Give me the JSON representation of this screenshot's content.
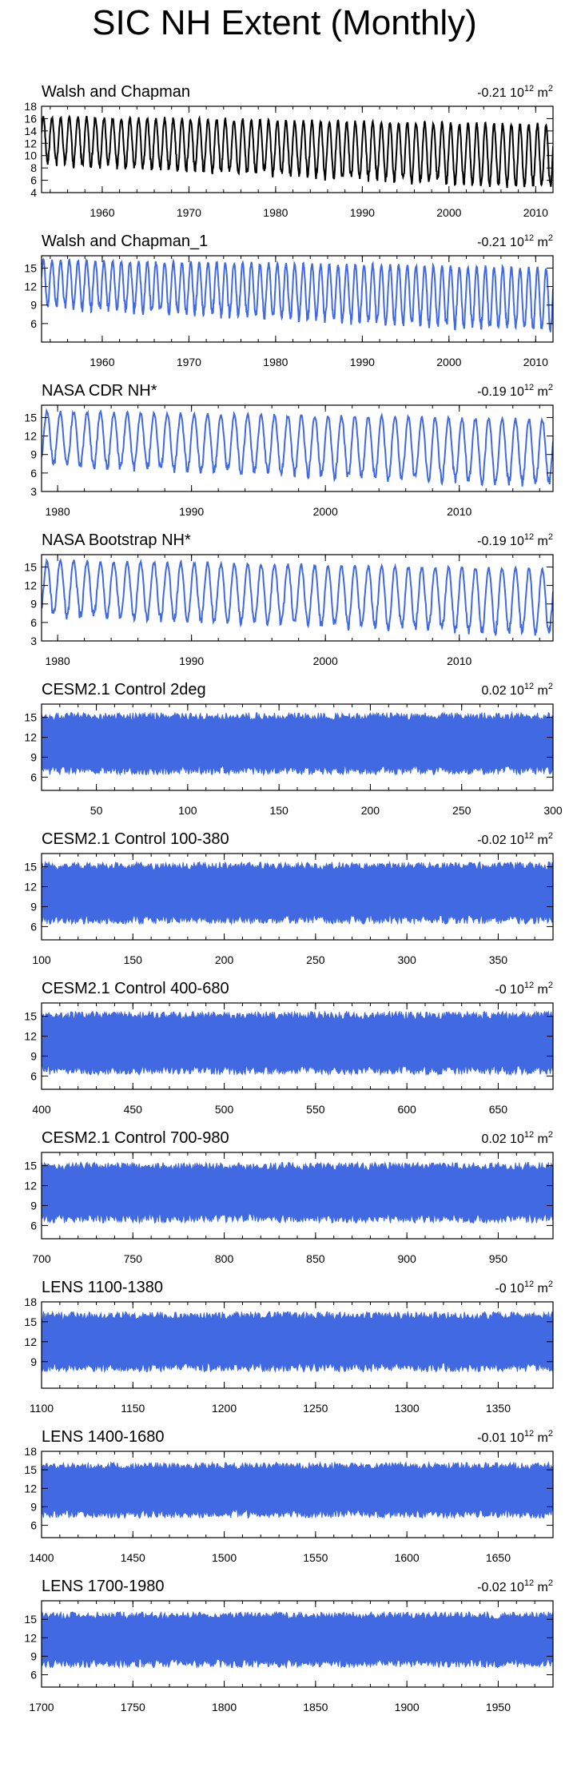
{
  "title": "SIC NH Extent (Monthly)",
  "colors": {
    "obs_black": "#000000",
    "blue": "#4169e1",
    "frame": "#000000"
  },
  "trend_unit_base": "10",
  "trend_unit_exp": "12",
  "trend_unit_tail": "m",
  "trend_unit_tail_exp": "2",
  "chart_data": [
    {
      "type": "line",
      "title": "Walsh and Chapman",
      "trend": "-0.21",
      "style": "line-black",
      "xlim": [
        1953,
        2012
      ],
      "ylim": [
        4,
        18
      ],
      "xticks": [
        1960,
        1970,
        1980,
        1990,
        2000,
        2010
      ],
      "yticks": [
        4,
        6,
        8,
        10,
        12,
        14,
        16,
        18
      ],
      "cycle": {
        "max_start": 16.3,
        "max_end": 15.0,
        "min_start": 8.9,
        "min_end": 5.0,
        "cycles_per_unit": 1
      }
    },
    {
      "type": "line",
      "title": "Walsh and Chapman_1",
      "trend": "-0.21",
      "style": "line-blue",
      "xlim": [
        1953,
        2012
      ],
      "ylim": [
        3,
        17
      ],
      "xticks": [
        1960,
        1970,
        1980,
        1990,
        2000,
        2010
      ],
      "yticks": [
        6,
        9,
        12,
        15
      ],
      "cycle": {
        "max_start": 16.3,
        "max_end": 15.0,
        "min_start": 8.9,
        "min_end": 5.0,
        "cycles_per_unit": 1
      }
    },
    {
      "type": "line",
      "title": "NASA CDR NH*",
      "trend": "-0.19",
      "style": "line-blue",
      "xlim": [
        1978.8,
        2017
      ],
      "ylim": [
        3,
        17
      ],
      "xticks": [
        1980,
        1990,
        2000,
        2010
      ],
      "yticks": [
        3,
        6,
        9,
        12,
        15
      ],
      "cycle": {
        "max_start": 16.0,
        "max_end": 14.6,
        "min_start": 7.3,
        "min_end": 4.3,
        "cycles_per_unit": 1
      }
    },
    {
      "type": "line",
      "title": "NASA Bootstrap NH*",
      "trend": "-0.19",
      "style": "line-blue",
      "xlim": [
        1978.8,
        2017
      ],
      "ylim": [
        3,
        17
      ],
      "xticks": [
        1980,
        1990,
        2000,
        2010
      ],
      "yticks": [
        3,
        6,
        9,
        12,
        15
      ],
      "cycle": {
        "max_start": 16.0,
        "max_end": 14.6,
        "min_start": 7.3,
        "min_end": 4.3,
        "cycles_per_unit": 1
      }
    },
    {
      "type": "area",
      "title": "CESM2.1 Control 2deg",
      "trend": "0.02",
      "style": "band-blue",
      "xlim": [
        20,
        300
      ],
      "ylim": [
        4,
        17
      ],
      "xticks": [
        50,
        100,
        150,
        200,
        250,
        300
      ],
      "yticks": [
        6,
        9,
        12,
        15
      ],
      "band": {
        "max": 15.0,
        "min": 7.2
      }
    },
    {
      "type": "area",
      "title": "CESM2.1 Control 100-380",
      "trend": "-0.02",
      "style": "band-blue",
      "xlim": [
        100,
        380
      ],
      "ylim": [
        4,
        17
      ],
      "xticks": [
        100,
        150,
        200,
        250,
        300,
        350
      ],
      "yticks": [
        6,
        9,
        12,
        15
      ],
      "band": {
        "max": 15.0,
        "min": 7.2
      }
    },
    {
      "type": "area",
      "title": "CESM2.1 Control 400-680",
      "trend": "-0",
      "style": "band-blue",
      "xlim": [
        400,
        680
      ],
      "ylim": [
        4,
        17
      ],
      "xticks": [
        400,
        450,
        500,
        550,
        600,
        650
      ],
      "yticks": [
        6,
        9,
        12,
        15
      ],
      "band": {
        "max": 15.0,
        "min": 7.0
      }
    },
    {
      "type": "area",
      "title": "CESM2.1 Control 700-980",
      "trend": "0.02",
      "style": "band-blue",
      "xlim": [
        700,
        980
      ],
      "ylim": [
        4,
        17
      ],
      "xticks": [
        700,
        750,
        800,
        850,
        900,
        950
      ],
      "yticks": [
        6,
        9,
        12,
        15
      ],
      "band": {
        "max": 14.8,
        "min": 7.2
      }
    },
    {
      "type": "area",
      "title": "LENS 1100-1380",
      "trend": "-0",
      "style": "band-blue",
      "xlim": [
        1100,
        1380
      ],
      "ylim": [
        5,
        18
      ],
      "xticks": [
        1100,
        1150,
        1200,
        1250,
        1300,
        1350
      ],
      "yticks": [
        9,
        12,
        15,
        18
      ],
      "band": {
        "max": 15.8,
        "min": 8.3
      }
    },
    {
      "type": "area",
      "title": "LENS 1400-1680",
      "trend": "-0.01",
      "style": "band-blue",
      "xlim": [
        1400,
        1680
      ],
      "ylim": [
        4,
        18
      ],
      "xticks": [
        1400,
        1450,
        1500,
        1550,
        1600,
        1650
      ],
      "yticks": [
        6,
        9,
        12,
        15,
        18
      ],
      "band": {
        "max": 15.5,
        "min": 8.0
      }
    },
    {
      "type": "area",
      "title": "LENS 1700-1980",
      "trend": "-0.02",
      "style": "band-blue",
      "xlim": [
        1700,
        1980
      ],
      "ylim": [
        4,
        18
      ],
      "xticks": [
        1700,
        1750,
        1800,
        1850,
        1900,
        1950
      ],
      "yticks": [
        6,
        9,
        12,
        15
      ],
      "band": {
        "max": 15.5,
        "min": 8.0
      }
    }
  ]
}
